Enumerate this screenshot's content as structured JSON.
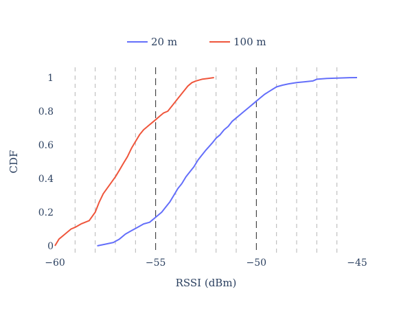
{
  "chart_data": {
    "type": "line",
    "xlabel": "RSSI (dBm)",
    "ylabel": "CDF",
    "xlim": [
      -60,
      -45
    ],
    "ylim": [
      0,
      1
    ],
    "xticks": [
      -60,
      -55,
      -50,
      -45
    ],
    "xtick_labels": [
      "−60",
      "−55",
      "−50",
      "−45"
    ],
    "yticks": [
      0,
      0.2,
      0.4,
      0.6,
      0.8,
      1
    ],
    "ytick_labels": [
      "0",
      "0.2",
      "0.4",
      "0.6",
      "0.8",
      "1"
    ],
    "grid": "vertical dashed lines every 1 dBm; darker dashed lines at -55 and -50",
    "legend_placement": "top-center, horizontal",
    "series": [
      {
        "name": "20 m",
        "color": "#636efa",
        "x": [
          -57.9,
          -57.5,
          -57.1,
          -56.8,
          -56.5,
          -56.2,
          -55.9,
          -55.6,
          -55.3,
          -55.0,
          -54.7,
          -54.5,
          -54.3,
          -54.1,
          -53.9,
          -53.7,
          -53.5,
          -53.3,
          -53.1,
          -52.9,
          -52.7,
          -52.5,
          -52.2,
          -52.0,
          -51.8,
          -51.6,
          -51.4,
          -51.2,
          -51.0,
          -50.8,
          -50.6,
          -50.4,
          -50.2,
          -50.0,
          -49.8,
          -49.6,
          -49.4,
          -49.2,
          -49.0,
          -48.7,
          -48.4,
          -48.0,
          -47.6,
          -47.2,
          -47.0,
          -46.5,
          -46.0,
          -45.5,
          -45.0
        ],
        "y": [
          0.0,
          0.01,
          0.02,
          0.04,
          0.07,
          0.09,
          0.11,
          0.13,
          0.14,
          0.17,
          0.2,
          0.23,
          0.26,
          0.3,
          0.34,
          0.37,
          0.41,
          0.44,
          0.47,
          0.51,
          0.54,
          0.57,
          0.61,
          0.64,
          0.66,
          0.69,
          0.71,
          0.74,
          0.76,
          0.78,
          0.8,
          0.82,
          0.84,
          0.86,
          0.88,
          0.9,
          0.915,
          0.93,
          0.945,
          0.955,
          0.963,
          0.97,
          0.975,
          0.98,
          0.99,
          0.995,
          0.997,
          0.999,
          1.0
        ]
      },
      {
        "name": "100 m",
        "color": "#ef553b",
        "x": [
          -60.0,
          -59.8,
          -59.5,
          -59.2,
          -59.0,
          -58.7,
          -58.5,
          -58.3,
          -58.0,
          -57.8,
          -57.6,
          -57.3,
          -57.0,
          -56.8,
          -56.6,
          -56.4,
          -56.2,
          -56.0,
          -55.8,
          -55.6,
          -55.4,
          -55.2,
          -55.0,
          -54.8,
          -54.6,
          -54.4,
          -54.2,
          -54.0,
          -53.8,
          -53.6,
          -53.4,
          -53.2,
          -53.0,
          -52.7,
          -52.4,
          -52.1
        ],
        "y": [
          0.0,
          0.04,
          0.07,
          0.1,
          0.11,
          0.13,
          0.14,
          0.15,
          0.2,
          0.26,
          0.31,
          0.36,
          0.41,
          0.45,
          0.49,
          0.53,
          0.58,
          0.62,
          0.66,
          0.69,
          0.71,
          0.73,
          0.75,
          0.77,
          0.79,
          0.8,
          0.83,
          0.86,
          0.89,
          0.92,
          0.95,
          0.97,
          0.98,
          0.99,
          0.995,
          1.0
        ]
      }
    ]
  }
}
